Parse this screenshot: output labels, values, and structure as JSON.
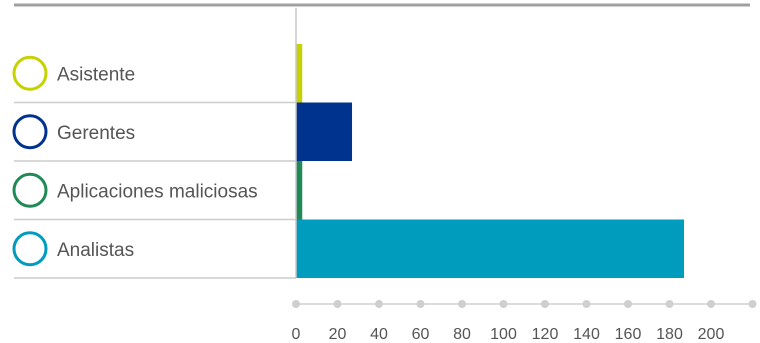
{
  "chart_data": {
    "type": "bar",
    "orientation": "horizontal",
    "categories": [
      "Asistente",
      "Gerentes",
      "Aplicaciones maliciosas",
      "Analistas"
    ],
    "values": [
      3,
      27,
      3,
      187
    ],
    "colors": [
      "#c5d200",
      "#00338d",
      "#1f8a55",
      "#009cbe"
    ],
    "xlim": [
      0,
      220
    ],
    "xticks": [
      0,
      20,
      40,
      60,
      80,
      100,
      120,
      140,
      160,
      180,
      200
    ],
    "title": "",
    "xlabel": "",
    "ylabel": "",
    "grid": false
  }
}
